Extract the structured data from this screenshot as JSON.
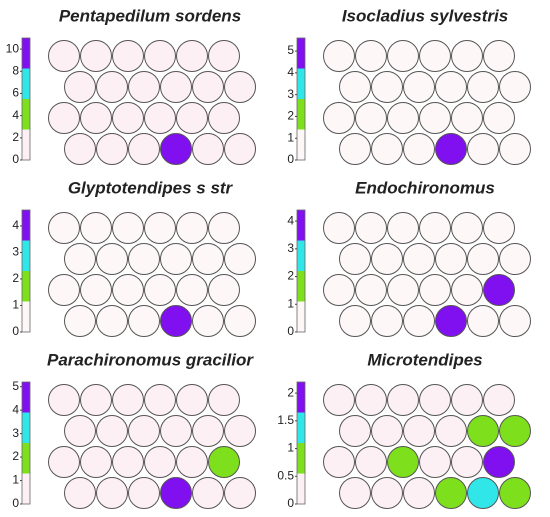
{
  "chart_data": [
    {
      "type": "hexmap",
      "title": "Pentapedilum sordens",
      "ylim": [
        0,
        11
      ],
      "yticks": [
        0,
        2,
        4,
        6,
        8,
        10
      ],
      "bins": [
        0,
        2.75,
        5.5,
        8.25,
        11
      ],
      "colors": [
        "#fcf0f5",
        "#7ee01c",
        "#30e6e8",
        "#8010f0"
      ],
      "rows": [
        [
          0,
          0,
          0,
          0,
          0,
          0
        ],
        [
          0,
          0,
          0,
          0,
          0,
          0
        ],
        [
          0,
          0,
          0,
          0,
          0,
          0
        ],
        [
          0,
          0,
          0,
          10,
          0,
          0
        ]
      ]
    },
    {
      "type": "hexmap",
      "title": "Isocladius sylvestris",
      "ylim": [
        0,
        5.6
      ],
      "yticks": [
        0,
        1,
        2,
        3,
        4,
        5
      ],
      "bins": [
        0,
        1.4,
        2.8,
        4.2,
        5.6
      ],
      "colors": [
        "#fdf7f8",
        "#7ee01c",
        "#30e6e8",
        "#8010f0"
      ],
      "rows": [
        [
          0,
          0,
          0,
          0,
          0,
          0
        ],
        [
          0,
          0,
          0,
          0,
          0,
          0
        ],
        [
          0,
          0,
          0,
          0,
          0,
          0
        ],
        [
          0,
          0,
          0,
          5,
          0,
          0
        ]
      ]
    },
    {
      "type": "hexmap",
      "title": "Glyptotendipes s str",
      "ylim": [
        0,
        4.6
      ],
      "yticks": [
        0,
        1,
        2,
        3,
        4
      ],
      "bins": [
        0,
        1.15,
        2.3,
        3.45,
        4.6
      ],
      "colors": [
        "#fdf7f8",
        "#7ee01c",
        "#30e6e8",
        "#8010f0"
      ],
      "rows": [
        [
          0,
          0,
          0,
          0,
          0,
          0
        ],
        [
          0,
          0,
          0,
          0,
          0,
          0
        ],
        [
          0,
          0,
          0,
          0,
          0,
          0
        ],
        [
          0,
          0,
          0,
          4,
          0,
          0
        ]
      ]
    },
    {
      "type": "hexmap",
      "title": "Endochironomus",
      "ylim": [
        0,
        4.4
      ],
      "yticks": [
        0,
        1,
        2,
        3,
        4
      ],
      "bins": [
        0,
        1.1,
        2.2,
        3.3,
        4.4
      ],
      "colors": [
        "#fdf7f8",
        "#7ee01c",
        "#30e6e8",
        "#8010f0"
      ],
      "rows": [
        [
          0,
          0,
          0,
          0,
          0,
          0
        ],
        [
          0,
          0,
          0,
          0,
          0,
          0
        ],
        [
          0,
          0,
          0,
          0,
          0,
          4
        ],
        [
          0,
          0,
          0,
          4,
          0,
          0
        ]
      ]
    },
    {
      "type": "hexmap",
      "title": "Parachironomus gracilior",
      "ylim": [
        0,
        5.2
      ],
      "yticks": [
        0,
        1,
        2,
        3,
        4,
        5
      ],
      "bins": [
        0,
        1.3,
        2.6,
        3.9,
        5.2
      ],
      "colors": [
        "#fcf0f5",
        "#7ee01c",
        "#30e6e8",
        "#8010f0"
      ],
      "rows": [
        [
          0,
          0,
          0,
          0,
          0,
          0
        ],
        [
          0,
          0,
          0,
          0,
          0,
          0
        ],
        [
          0,
          0,
          0,
          0,
          0,
          2
        ],
        [
          0,
          0,
          0,
          5,
          0,
          0
        ]
      ]
    },
    {
      "type": "hexmap",
      "title": "Microtendipes",
      "ylim": [
        0,
        2.2
      ],
      "yticks": [
        0,
        0.5,
        1,
        1.5,
        2
      ],
      "bins": [
        0,
        0.55,
        1.1,
        1.65,
        2.2
      ],
      "colors": [
        "#fcf0f5",
        "#7ee01c",
        "#30e6e8",
        "#8010f0"
      ],
      "rows": [
        [
          0,
          0,
          0,
          0,
          0,
          0
        ],
        [
          0,
          0,
          0,
          0,
          0.9,
          0.9
        ],
        [
          0,
          0,
          0.9,
          0,
          0,
          2
        ],
        [
          0,
          0,
          0,
          0.9,
          1.4,
          0.9
        ]
      ]
    }
  ]
}
